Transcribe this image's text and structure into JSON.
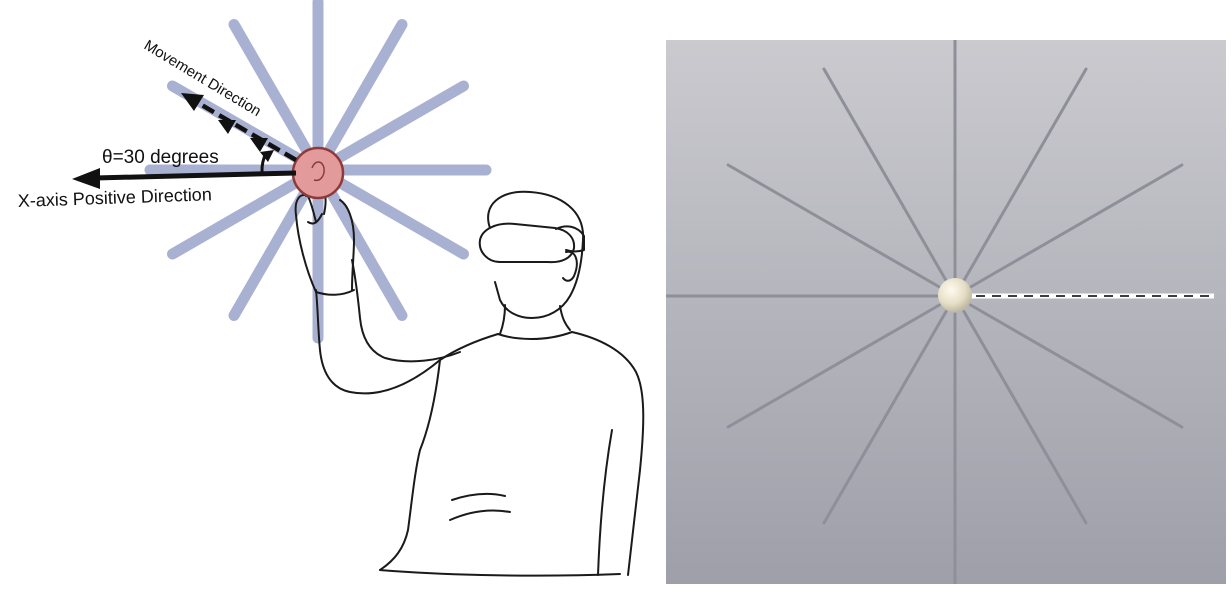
{
  "left_panel": {
    "movement_label": "Movement Direction",
    "angle_label": "θ=30 degrees",
    "x_axis_label": "X-axis Positive Direction",
    "angle_deg": 30,
    "spoke_count": 12,
    "colors": {
      "spokes": "#a9b1d2",
      "target": "#e39a9a",
      "target_stroke": "#8f3a3a",
      "arrows": "#111111"
    }
  },
  "right_panel": {
    "spoke_count": 12,
    "colors": {
      "background_top": "#c9c9ce",
      "background_bottom": "#9fa0aa",
      "spokes": "#8e8f99",
      "sphere": "#e8e2cc",
      "path": "#ffffff",
      "path_dash": "#222222"
    }
  }
}
